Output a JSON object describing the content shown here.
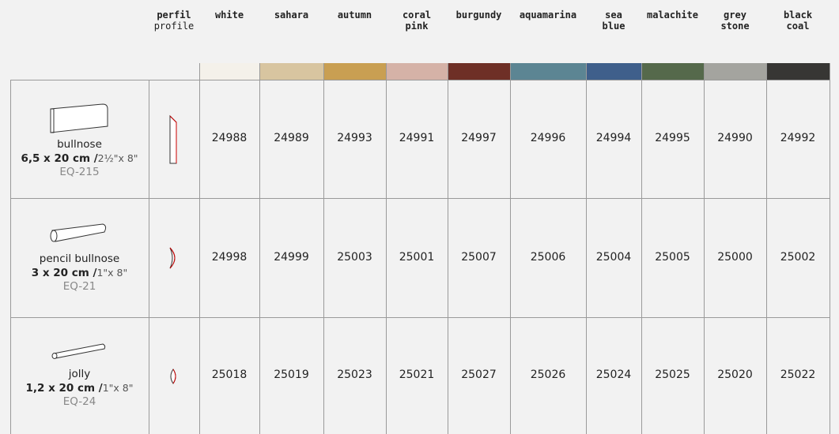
{
  "header": {
    "profile": [
      "perfil",
      "profile"
    ],
    "colors": [
      [
        "white"
      ],
      [
        "sahara"
      ],
      [
        "autumn"
      ],
      [
        "coral",
        "pink"
      ],
      [
        "burgundy"
      ],
      [
        "aquamarina"
      ],
      [
        "sea",
        "blue"
      ],
      [
        "malachite"
      ],
      [
        "grey",
        "stone"
      ],
      [
        "black",
        "coal"
      ]
    ]
  },
  "rows": [
    {
      "name": "bullnose",
      "size": "6,5 x 20 cm /",
      "size_imperial": "2½\"x 8\"",
      "code": "EQ-215",
      "codes": [
        "24988",
        "24989",
        "24993",
        "24991",
        "24997",
        "24996",
        "24994",
        "24995",
        "24990",
        "24992"
      ]
    },
    {
      "name": "pencil bullnose",
      "size": "3 x 20 cm /",
      "size_imperial": "1\"x 8\"",
      "code": "EQ-21",
      "codes": [
        "24998",
        "24999",
        "25003",
        "25001",
        "25007",
        "25006",
        "25004",
        "25005",
        "25000",
        "25002"
      ]
    },
    {
      "name": "jolly",
      "size": "1,2 x 20 cm /",
      "size_imperial": "1\"x 8\"",
      "code": "EQ-24",
      "codes": [
        "25018",
        "25019",
        "25023",
        "25021",
        "25027",
        "25026",
        "25024",
        "25025",
        "25020",
        "25022"
      ]
    }
  ]
}
